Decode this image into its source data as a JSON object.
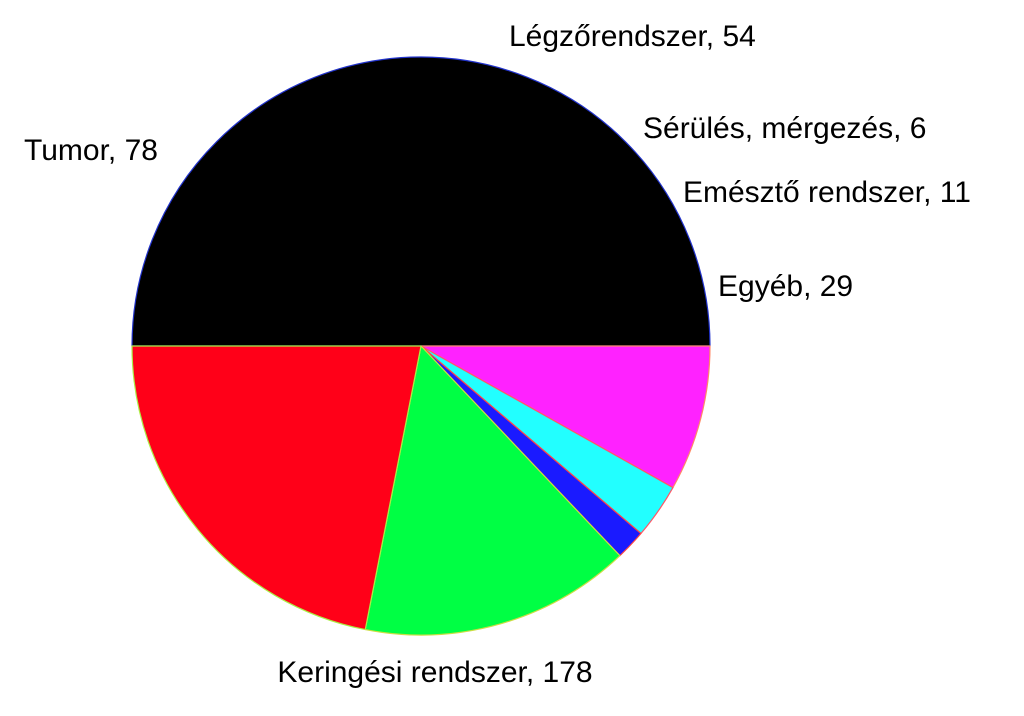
{
  "chart_data": {
    "type": "pie",
    "title": "",
    "slices": [
      {
        "name": "Keringési rendszer",
        "value": 178,
        "label": "Keringési rendszer, 178",
        "color": "#000000",
        "edge": "#2233cc"
      },
      {
        "name": "Egyéb",
        "value": 29,
        "label": "Egyéb, 29",
        "color": "#ff22ff",
        "edge": "#ff8866"
      },
      {
        "name": "Emésztő rendszer",
        "value": 11,
        "label": "Emésztő rendszer, 11",
        "color": "#22ffff",
        "edge": "#ff5566"
      },
      {
        "name": "Sérülés, mérgezés",
        "value": 6,
        "label": "Sérülés, mérgezés, 6",
        "color": "#1a1aff",
        "edge": "#ff4444"
      },
      {
        "name": "Légzőrendszer",
        "value": 54,
        "label": "Légzőrendszer, 54",
        "color": "#00ff44",
        "edge": "#ccdd44"
      },
      {
        "name": "Tumor",
        "value": 78,
        "label": "Tumor, 78",
        "color": "#ff0018",
        "edge": "#aaee44"
      }
    ],
    "start_angle": "9 o'clock (left), clockwise",
    "legend": "none; labels beside slices"
  }
}
